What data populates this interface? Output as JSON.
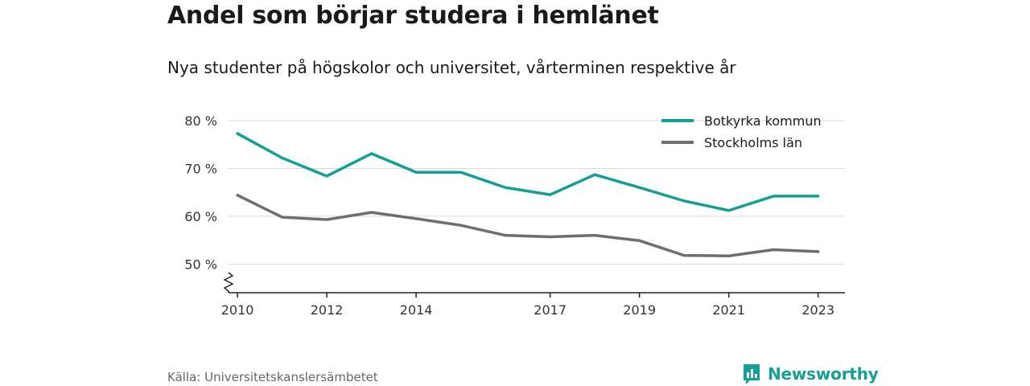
{
  "chart_data": {
    "type": "line",
    "title": "Andel som börjar studera i hemlänet",
    "subtitle": "Nya studenter på högskolor och universitet, vårterminen respektive år",
    "x": [
      2010,
      2011,
      2012,
      2013,
      2014,
      2015,
      2016,
      2017,
      2018,
      2019,
      2020,
      2021,
      2022,
      2023
    ],
    "x_tick_values": [
      2010,
      2012,
      2014,
      2017,
      2019,
      2021,
      2023
    ],
    "x_tick_labels": [
      "2010",
      "2012",
      "2014",
      "2017",
      "2019",
      "2021",
      "2023"
    ],
    "y_tick_values": [
      50,
      60,
      70,
      80
    ],
    "y_tick_labels": [
      "50 %",
      "60 %",
      "70 %",
      "80 %"
    ],
    "ylim": [
      44,
      80
    ],
    "xlim": [
      2009.8,
      2023.6
    ],
    "axis_break": true,
    "grid": true,
    "legend_position": "top-right",
    "series": [
      {
        "name": "Botkyrka kommun",
        "color": "#149f95",
        "values": [
          77.3,
          72.2,
          68.4,
          73.1,
          69.2,
          69.2,
          66.0,
          64.5,
          68.7,
          66.0,
          63.2,
          61.2,
          64.2,
          64.2
        ]
      },
      {
        "name": "Stockholms län",
        "color": "#6e6d73",
        "values": [
          64.4,
          59.8,
          59.3,
          60.8,
          59.5,
          58.1,
          56.0,
          55.7,
          56.0,
          54.9,
          51.8,
          51.7,
          53.0,
          52.6
        ]
      }
    ],
    "source": "Källa: Universitetskanslersämbetet"
  },
  "branding": {
    "logo_text": "Newsworthy",
    "logo_icon": "bar-chart-speech-bubble-icon",
    "color": "#149f95"
  }
}
